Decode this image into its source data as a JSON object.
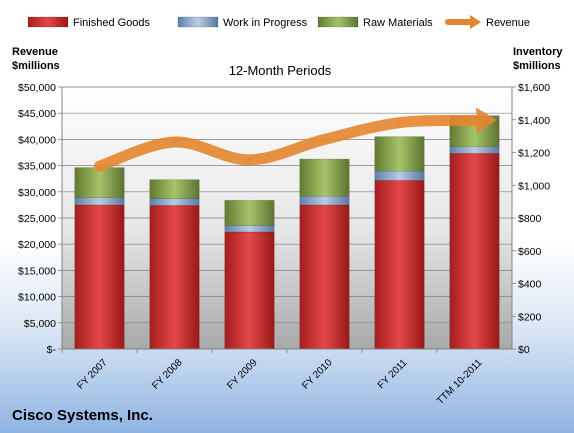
{
  "chart_data": {
    "type": "bar",
    "title": "12-Month Periods",
    "company": "Cisco Systems, Inc.",
    "left_axis_label": [
      "Revenue",
      "$millions"
    ],
    "right_axis_label": [
      "Inventory",
      "$millions"
    ],
    "categories": [
      "FY 2007",
      "FY 2008",
      "FY 2009",
      "FY 2010",
      "FY 2011",
      "TTM 10-2011"
    ],
    "stacked": true,
    "series": [
      {
        "name": "Finished Goods",
        "axis": "right",
        "color": "#c00000",
        "values": [
          880,
          877,
          715,
          880,
          1030,
          1195
        ]
      },
      {
        "name": "Work in Progress",
        "axis": "right",
        "color": "#4f81bd",
        "values": [
          44,
          42,
          38,
          53,
          56,
          40
        ]
      },
      {
        "name": "Raw Materials",
        "axis": "right",
        "color": "#77933c",
        "values": [
          184,
          115,
          155,
          227,
          211,
          190
        ]
      },
      {
        "name": "Revenue",
        "type": "line",
        "axis": "left",
        "color": "#e4852f",
        "values": [
          34900,
          39500,
          36100,
          40000,
          43200,
          43600
        ]
      }
    ],
    "left_axis": {
      "min": 0,
      "max": 50000,
      "step": 5000,
      "tick_labels": [
        "$-",
        "$5,000",
        "$10,000",
        "$15,000",
        "$20,000",
        "$25,000",
        "$30,000",
        "$35,000",
        "$40,000",
        "$45,000",
        "$50,000"
      ]
    },
    "right_axis": {
      "min": 0,
      "max": 1600,
      "step": 200,
      "tick_labels": [
        "$0",
        "$200",
        "$400",
        "$600",
        "$800",
        "$1,000",
        "$1,200",
        "$1,400",
        "$1,600"
      ]
    },
    "grid": true,
    "legend_position": "top"
  }
}
